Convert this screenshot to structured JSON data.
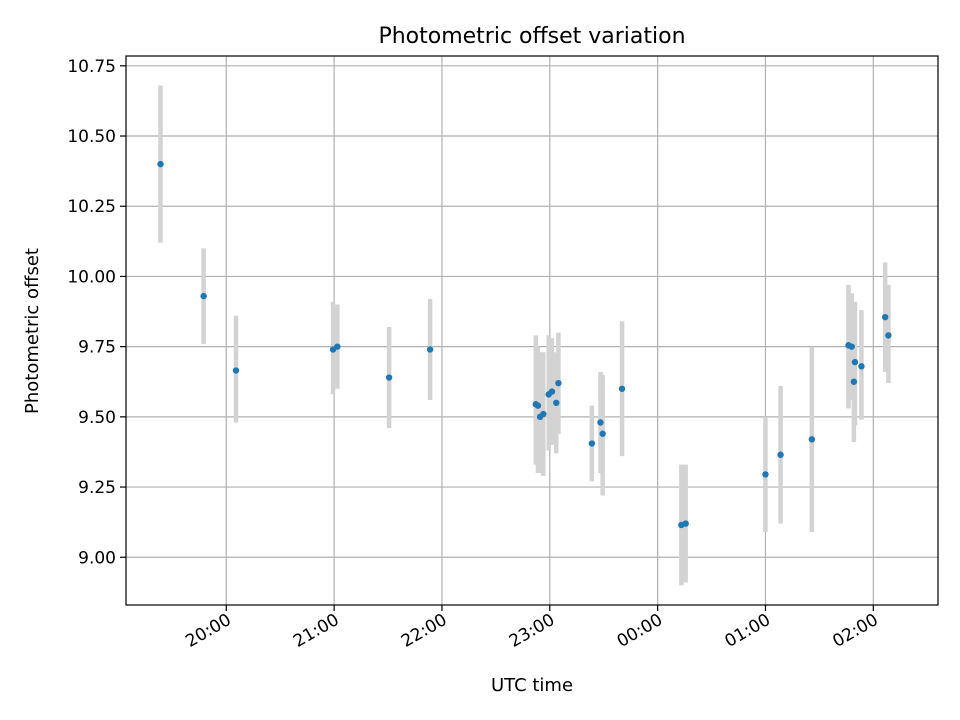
{
  "chart_data": {
    "type": "scatter",
    "title": "Photometric offset variation",
    "xlabel": "UTC time",
    "ylabel": "Photometric offset",
    "x_unit": "hours relative to 20:00 UTC",
    "xlim": [
      -0.93,
      6.6
    ],
    "ylim": [
      8.83,
      10.785
    ],
    "xticks": [
      {
        "value": 0,
        "label": "20:00"
      },
      {
        "value": 1,
        "label": "21:00"
      },
      {
        "value": 2,
        "label": "22:00"
      },
      {
        "value": 3,
        "label": "23:00"
      },
      {
        "value": 4,
        "label": "00:00"
      },
      {
        "value": 5,
        "label": "01:00"
      },
      {
        "value": 6,
        "label": "02:00"
      }
    ],
    "yticks": [
      {
        "value": 9.0,
        "label": "9.00"
      },
      {
        "value": 9.25,
        "label": "9.25"
      },
      {
        "value": 9.5,
        "label": "9.50"
      },
      {
        "value": 9.75,
        "label": "9.75"
      },
      {
        "value": 10.0,
        "label": "10.00"
      },
      {
        "value": 10.25,
        "label": "10.25"
      },
      {
        "value": 10.5,
        "label": "10.50"
      },
      {
        "value": 10.75,
        "label": "10.75"
      }
    ],
    "grid": true,
    "colors": {
      "point": "#1f77b4",
      "errorbar": "#d3d3d3",
      "grid": "#b0b0b0"
    },
    "series": [
      {
        "points": [
          {
            "x": -0.61,
            "y": 10.4,
            "lo": 10.12,
            "hi": 10.68
          },
          {
            "x": -0.21,
            "y": 9.93,
            "lo": 9.76,
            "hi": 10.1
          },
          {
            "x": 0.09,
            "y": 9.665,
            "lo": 9.48,
            "hi": 9.86
          },
          {
            "x": 0.99,
            "y": 9.74,
            "lo": 9.58,
            "hi": 9.91
          },
          {
            "x": 1.03,
            "y": 9.75,
            "lo": 9.6,
            "hi": 9.9
          },
          {
            "x": 1.51,
            "y": 9.64,
            "lo": 9.46,
            "hi": 9.82
          },
          {
            "x": 1.89,
            "y": 9.74,
            "lo": 9.56,
            "hi": 9.92
          },
          {
            "x": 2.87,
            "y": 9.545,
            "lo": 9.33,
            "hi": 9.79
          },
          {
            "x": 2.89,
            "y": 9.54,
            "lo": 9.3,
            "hi": 9.75
          },
          {
            "x": 2.91,
            "y": 9.5,
            "lo": 9.3,
            "hi": 9.73
          },
          {
            "x": 2.94,
            "y": 9.51,
            "lo": 9.29,
            "hi": 9.73
          },
          {
            "x": 2.99,
            "y": 9.58,
            "lo": 9.38,
            "hi": 9.79
          },
          {
            "x": 3.02,
            "y": 9.59,
            "lo": 9.4,
            "hi": 9.78
          },
          {
            "x": 3.06,
            "y": 9.55,
            "lo": 9.37,
            "hi": 9.73
          },
          {
            "x": 3.08,
            "y": 9.62,
            "lo": 9.44,
            "hi": 9.8
          },
          {
            "x": 3.39,
            "y": 9.405,
            "lo": 9.27,
            "hi": 9.54
          },
          {
            "x": 3.47,
            "y": 9.48,
            "lo": 9.3,
            "hi": 9.66
          },
          {
            "x": 3.49,
            "y": 9.44,
            "lo": 9.22,
            "hi": 9.65
          },
          {
            "x": 3.67,
            "y": 9.6,
            "lo": 9.36,
            "hi": 9.84
          },
          {
            "x": 4.22,
            "y": 9.115,
            "lo": 8.9,
            "hi": 9.33
          },
          {
            "x": 4.26,
            "y": 9.12,
            "lo": 8.91,
            "hi": 9.33
          },
          {
            "x": 5.0,
            "y": 9.295,
            "lo": 9.09,
            "hi": 9.5
          },
          {
            "x": 5.14,
            "y": 9.365,
            "lo": 9.12,
            "hi": 9.61
          },
          {
            "x": 5.43,
            "y": 9.42,
            "lo": 9.09,
            "hi": 9.75
          },
          {
            "x": 5.77,
            "y": 9.755,
            "lo": 9.53,
            "hi": 9.97
          },
          {
            "x": 5.8,
            "y": 9.75,
            "lo": 9.56,
            "hi": 9.94
          },
          {
            "x": 5.82,
            "y": 9.625,
            "lo": 9.41,
            "hi": 9.84
          },
          {
            "x": 5.83,
            "y": 9.695,
            "lo": 9.47,
            "hi": 9.91
          },
          {
            "x": 5.89,
            "y": 9.68,
            "lo": 9.49,
            "hi": 9.88
          },
          {
            "x": 6.11,
            "y": 9.855,
            "lo": 9.66,
            "hi": 10.05
          },
          {
            "x": 6.14,
            "y": 9.79,
            "lo": 9.62,
            "hi": 9.97
          }
        ]
      }
    ]
  }
}
